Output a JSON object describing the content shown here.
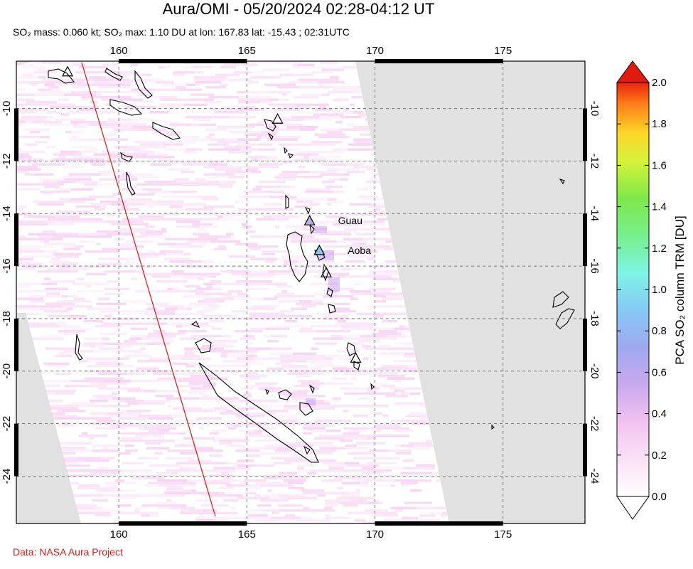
{
  "header": {
    "title": "Aura/OMI - 05/20/2024 02:28-04:12 UT",
    "subtitle": "SO₂ mass: 0.060 kt; SO₂ max: 1.10 DU at lon: 167.83 lat: -15.43 ; 02:31UTC"
  },
  "credit": "Data: NASA Aura Project",
  "map": {
    "lon_range": [
      156,
      178.2
    ],
    "lat_range": [
      -25.8,
      -8.2
    ],
    "lon_ticks": [
      160,
      165,
      170,
      175
    ],
    "lat_ticks": [
      -10,
      -12,
      -14,
      -16,
      -18,
      -20,
      -22,
      -24
    ],
    "no_data_color": "#e1e1e1",
    "coastline_color": "#000000",
    "track_line_color": "#cc2a1e",
    "grid": "dashed"
  },
  "volcanoes": [
    {
      "name": "Guau",
      "lon": 167.45,
      "lat": -14.27,
      "fill": "#b9b0e6"
    },
    {
      "name": "Aoba",
      "lon": 167.83,
      "lat": -15.4,
      "fill": "#88c5ef"
    },
    {
      "name": "",
      "lon": 158.0,
      "lat": -8.6,
      "fill": "none"
    },
    {
      "name": "",
      "lon": 166.2,
      "lat": -10.4,
      "fill": "none"
    },
    {
      "name": "",
      "lon": 168.1,
      "lat": -16.25,
      "fill": "none"
    },
    {
      "name": "",
      "lon": 169.25,
      "lat": -19.5,
      "fill": "none"
    }
  ],
  "colorbar": {
    "title": "PCA SO₂ column TRM [DU]",
    "min": 0.0,
    "max": 2.0,
    "tick_labels": [
      "0.0",
      "0.2",
      "0.4",
      "0.6",
      "0.8",
      "1.0",
      "1.2",
      "1.4",
      "1.6",
      "1.8",
      "2.0"
    ],
    "colors": [
      "#ffffff",
      "#f8d2f2",
      "#d9a8f0",
      "#a9a7f0",
      "#8fc7f5",
      "#7ff2ec",
      "#77f08a",
      "#5ce64a",
      "#c5f23a",
      "#ffe22c",
      "#ff8a1c",
      "#ff3a14",
      "#e01a0e"
    ]
  }
}
